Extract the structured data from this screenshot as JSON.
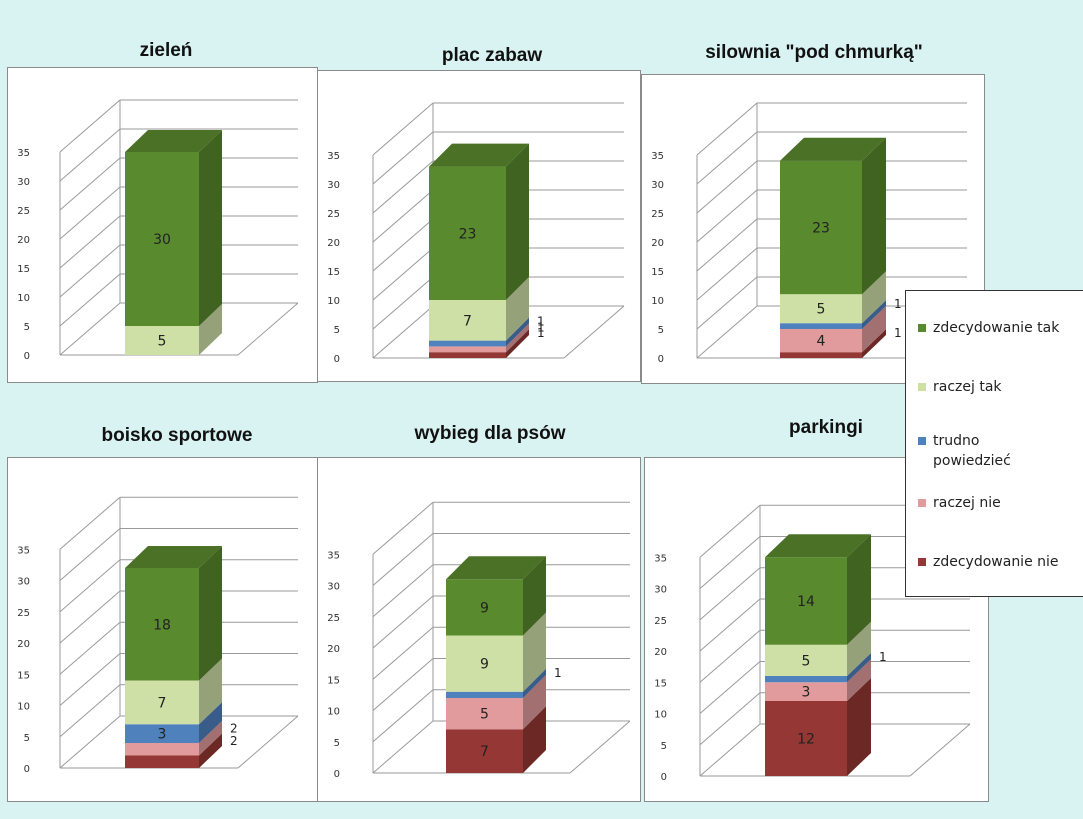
{
  "colors": {
    "zdecydowanie_tak": "#5a8a2e",
    "raczej_tak": "#cfe0a6",
    "trudno": "#4f81bd",
    "raczej_nie": "#e29b9d",
    "zdecydowanie_nie": "#953734"
  },
  "legend": {
    "items": [
      {
        "label": "zdecydowanie tak",
        "color": "#5a8a2e"
      },
      {
        "label": "raczej tak",
        "color": "#cfe0a6"
      },
      {
        "label": "trudno powiedzieć",
        "color": "#4f81bd"
      },
      {
        "label": "raczej nie",
        "color": "#e29b9d"
      },
      {
        "label": "zdecydowanie nie",
        "color": "#953734"
      }
    ]
  },
  "chart_data": [
    {
      "type": "bar",
      "title": "zieleń",
      "stacked": true,
      "three_d": true,
      "y_ticks": [
        "0",
        "5",
        "10",
        "15",
        "20",
        "25",
        "30",
        "35"
      ],
      "ylim": [
        0,
        35
      ],
      "series": [
        {
          "name": "zdecydowanie nie",
          "value": 0
        },
        {
          "name": "raczej nie",
          "value": 0
        },
        {
          "name": "trudno powiedzieć",
          "value": 0
        },
        {
          "name": "raczej tak",
          "value": 5
        },
        {
          "name": "zdecydowanie tak",
          "value": 30
        }
      ],
      "data_labels": [
        "",
        "",
        "",
        "5",
        "30"
      ]
    },
    {
      "type": "bar",
      "title": "plac zabaw",
      "stacked": true,
      "three_d": true,
      "y_ticks": [
        "0",
        "5",
        "10",
        "15",
        "20",
        "25",
        "30",
        "35"
      ],
      "ylim": [
        0,
        35
      ],
      "series": [
        {
          "name": "zdecydowanie nie",
          "value": 1
        },
        {
          "name": "raczej nie",
          "value": 1
        },
        {
          "name": "trudno powiedzieć",
          "value": 1
        },
        {
          "name": "raczej tak",
          "value": 7
        },
        {
          "name": "zdecydowanie tak",
          "value": 23
        }
      ],
      "data_labels": [
        "1",
        "1",
        "1",
        "7",
        "23"
      ]
    },
    {
      "type": "bar",
      "title": "silownia \"pod chmurką\"",
      "stacked": true,
      "three_d": true,
      "y_ticks": [
        "0",
        "5",
        "10",
        "15",
        "20",
        "25",
        "30",
        "35"
      ],
      "ylim": [
        0,
        35
      ],
      "series": [
        {
          "name": "zdecydowanie nie",
          "value": 1
        },
        {
          "name": "raczej nie",
          "value": 4
        },
        {
          "name": "trudno powiedzieć",
          "value": 1
        },
        {
          "name": "raczej tak",
          "value": 5
        },
        {
          "name": "zdecydowanie tak",
          "value": 23
        }
      ],
      "data_labels": [
        "1",
        "4",
        "1",
        "5",
        "23"
      ]
    },
    {
      "type": "bar",
      "title": "boisko sportowe",
      "stacked": true,
      "three_d": true,
      "y_ticks": [
        "0",
        "5",
        "10",
        "15",
        "20",
        "25",
        "30",
        "35"
      ],
      "ylim": [
        0,
        35
      ],
      "series": [
        {
          "name": "zdecydowanie nie",
          "value": 2
        },
        {
          "name": "raczej nie",
          "value": 2
        },
        {
          "name": "trudno powiedzieć",
          "value": 3
        },
        {
          "name": "raczej tak",
          "value": 7
        },
        {
          "name": "zdecydowanie tak",
          "value": 18
        }
      ],
      "data_labels": [
        "2",
        "2",
        "3",
        "7",
        "18"
      ]
    },
    {
      "type": "bar",
      "title": "wybieg dla psów",
      "stacked": true,
      "three_d": true,
      "y_ticks": [
        "0",
        "5",
        "10",
        "15",
        "20",
        "25",
        "30",
        "35"
      ],
      "ylim": [
        0,
        35
      ],
      "series": [
        {
          "name": "zdecydowanie nie",
          "value": 7
        },
        {
          "name": "raczej nie",
          "value": 5
        },
        {
          "name": "trudno powiedzieć",
          "value": 1
        },
        {
          "name": "raczej tak",
          "value": 9
        },
        {
          "name": "zdecydowanie tak",
          "value": 9
        }
      ],
      "data_labels": [
        "7",
        "5",
        "1",
        "9",
        "9"
      ]
    },
    {
      "type": "bar",
      "title": "parkingi",
      "stacked": true,
      "three_d": true,
      "y_ticks": [
        "0",
        "5",
        "10",
        "15",
        "20",
        "25",
        "30",
        "35"
      ],
      "ylim": [
        0,
        35
      ],
      "series": [
        {
          "name": "zdecydowanie nie",
          "value": 12
        },
        {
          "name": "raczej nie",
          "value": 3
        },
        {
          "name": "trudno powiedzieć",
          "value": 1
        },
        {
          "name": "raczej tak",
          "value": 5
        },
        {
          "name": "zdecydowanie tak",
          "value": 14
        }
      ],
      "data_labels": [
        "12",
        "3",
        "1",
        "5",
        "14"
      ]
    }
  ]
}
